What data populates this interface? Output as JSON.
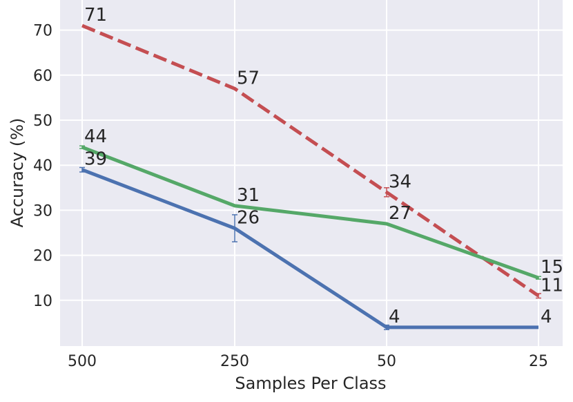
{
  "chart_data": {
    "type": "line",
    "title": "",
    "xlabel": "Samples Per Class",
    "ylabel": "Accuracy (%)",
    "categories": [
      "500",
      "250",
      "50",
      "25"
    ],
    "ylim": [
      0,
      75
    ],
    "yticks": [
      10,
      20,
      30,
      40,
      50,
      60,
      70
    ],
    "grid": true,
    "legend": "none",
    "series": [
      {
        "color": "#c44e52",
        "dash": true,
        "values": [
          71,
          57,
          34,
          11
        ],
        "labels": [
          "71",
          "57",
          "34",
          "11"
        ],
        "errors": [
          0,
          0,
          1,
          0.5
        ]
      },
      {
        "color": "#55a868",
        "dash": false,
        "values": [
          44,
          31,
          27,
          15
        ],
        "labels": [
          "44",
          "31",
          "27",
          "15"
        ],
        "errors": [
          0.3,
          0,
          0,
          0.3
        ]
      },
      {
        "color": "#4c72b0",
        "dash": false,
        "values": [
          39,
          26,
          4,
          4
        ],
        "labels": [
          "39",
          "26",
          "4",
          "4"
        ],
        "errors": [
          0.5,
          3,
          0.5,
          0
        ]
      }
    ]
  }
}
